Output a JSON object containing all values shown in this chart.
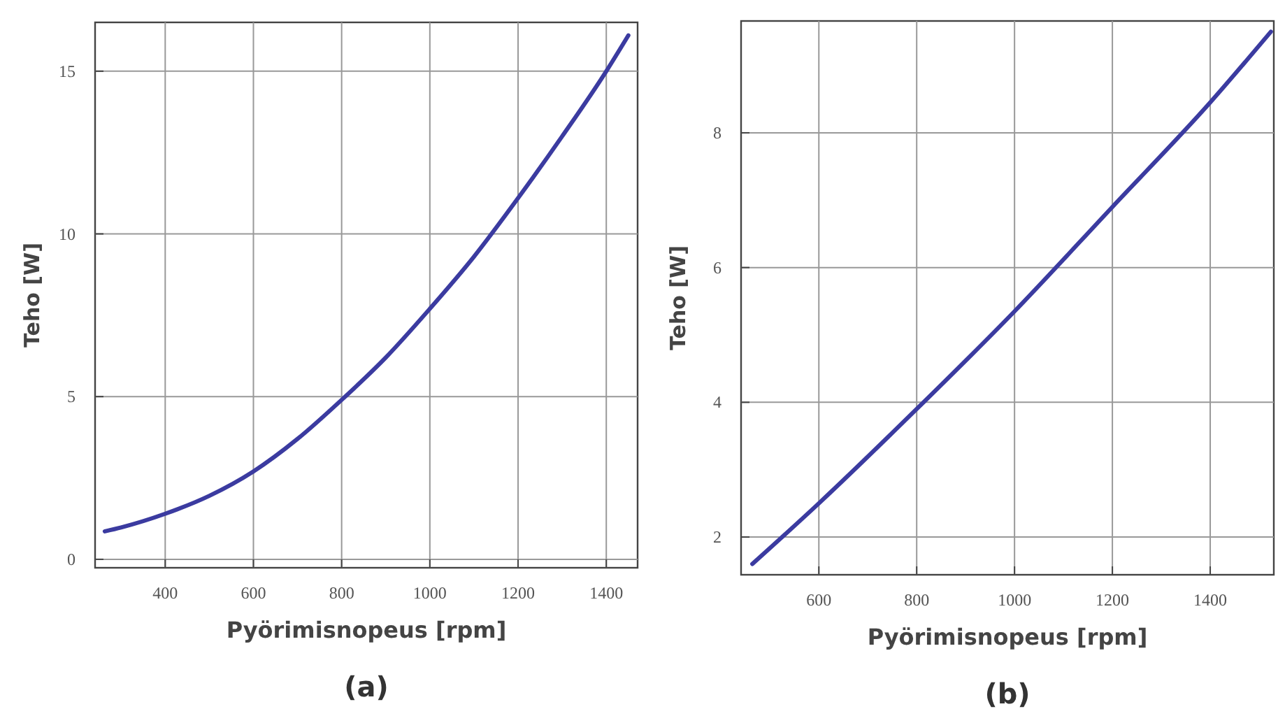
{
  "chart_data": [
    {
      "type": "line",
      "title": "(a)",
      "xlabel": "Pyörimisnopeus [rpm]",
      "ylabel": "Teho [W]",
      "xlim": [
        241,
        1471
      ],
      "ylim": [
        -0.26,
        16.5
      ],
      "xticks": [
        400,
        600,
        800,
        1000,
        1200,
        1400
      ],
      "yticks": [
        0,
        5,
        10,
        15
      ],
      "grid": true,
      "series": [
        {
          "color": "#3b3ba0",
          "x": [
            263,
            300,
            400,
            500,
            600,
            700,
            800,
            900,
            1000,
            1100,
            1200,
            1300,
            1400,
            1450
          ],
          "values": [
            0.86,
            0.98,
            1.4,
            1.95,
            2.7,
            3.7,
            4.9,
            6.2,
            7.7,
            9.3,
            11.1,
            13.0,
            15.0,
            16.1
          ]
        }
      ]
    },
    {
      "type": "line",
      "title": "(b)",
      "xlabel": "Pyörimisnopeus [rpm]",
      "ylabel": "Teho [W]",
      "xlim": [
        441,
        1530
      ],
      "ylim": [
        1.44,
        9.66
      ],
      "xticks": [
        600,
        800,
        1000,
        1200,
        1400
      ],
      "yticks": [
        2,
        4,
        6,
        8
      ],
      "grid": true,
      "series": [
        {
          "color": "#3b3ba0",
          "x": [
            464,
            600,
            800,
            1000,
            1200,
            1400,
            1524
          ],
          "values": [
            1.6,
            2.5,
            3.9,
            5.35,
            6.9,
            8.45,
            9.5
          ]
        }
      ]
    }
  ]
}
